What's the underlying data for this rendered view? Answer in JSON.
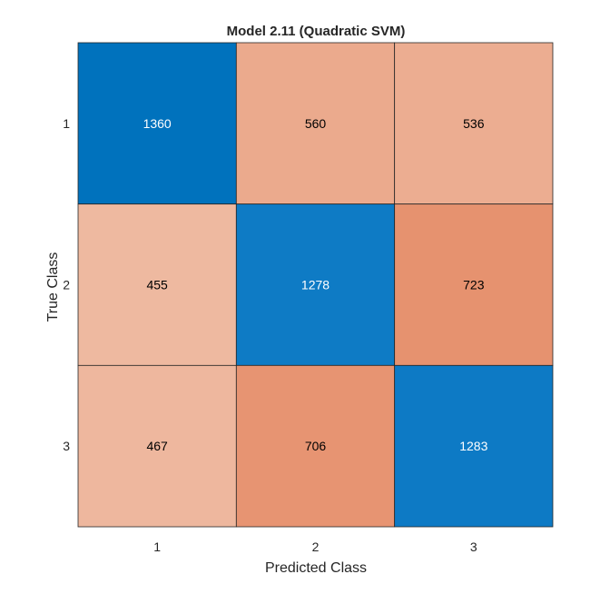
{
  "chart_data": {
    "type": "heatmap",
    "title": "Model 2.11 (Quadratic SVM)",
    "xlabel": "Predicted Class",
    "ylabel": "True Class",
    "x_categories": [
      "1",
      "2",
      "3"
    ],
    "y_categories": [
      "1",
      "2",
      "3"
    ],
    "values": [
      [
        1360,
        560,
        536
      ],
      [
        455,
        1278,
        723
      ],
      [
        467,
        706,
        1283
      ]
    ],
    "colors": {
      "correct_high": "#0072BD",
      "correct_low": "#0E7BC5",
      "incorrect_light": "#EEB9A0",
      "incorrect_dark": "#E6926F",
      "correct_text": "#ffffff",
      "incorrect_text": "#000000"
    },
    "grid": true
  }
}
